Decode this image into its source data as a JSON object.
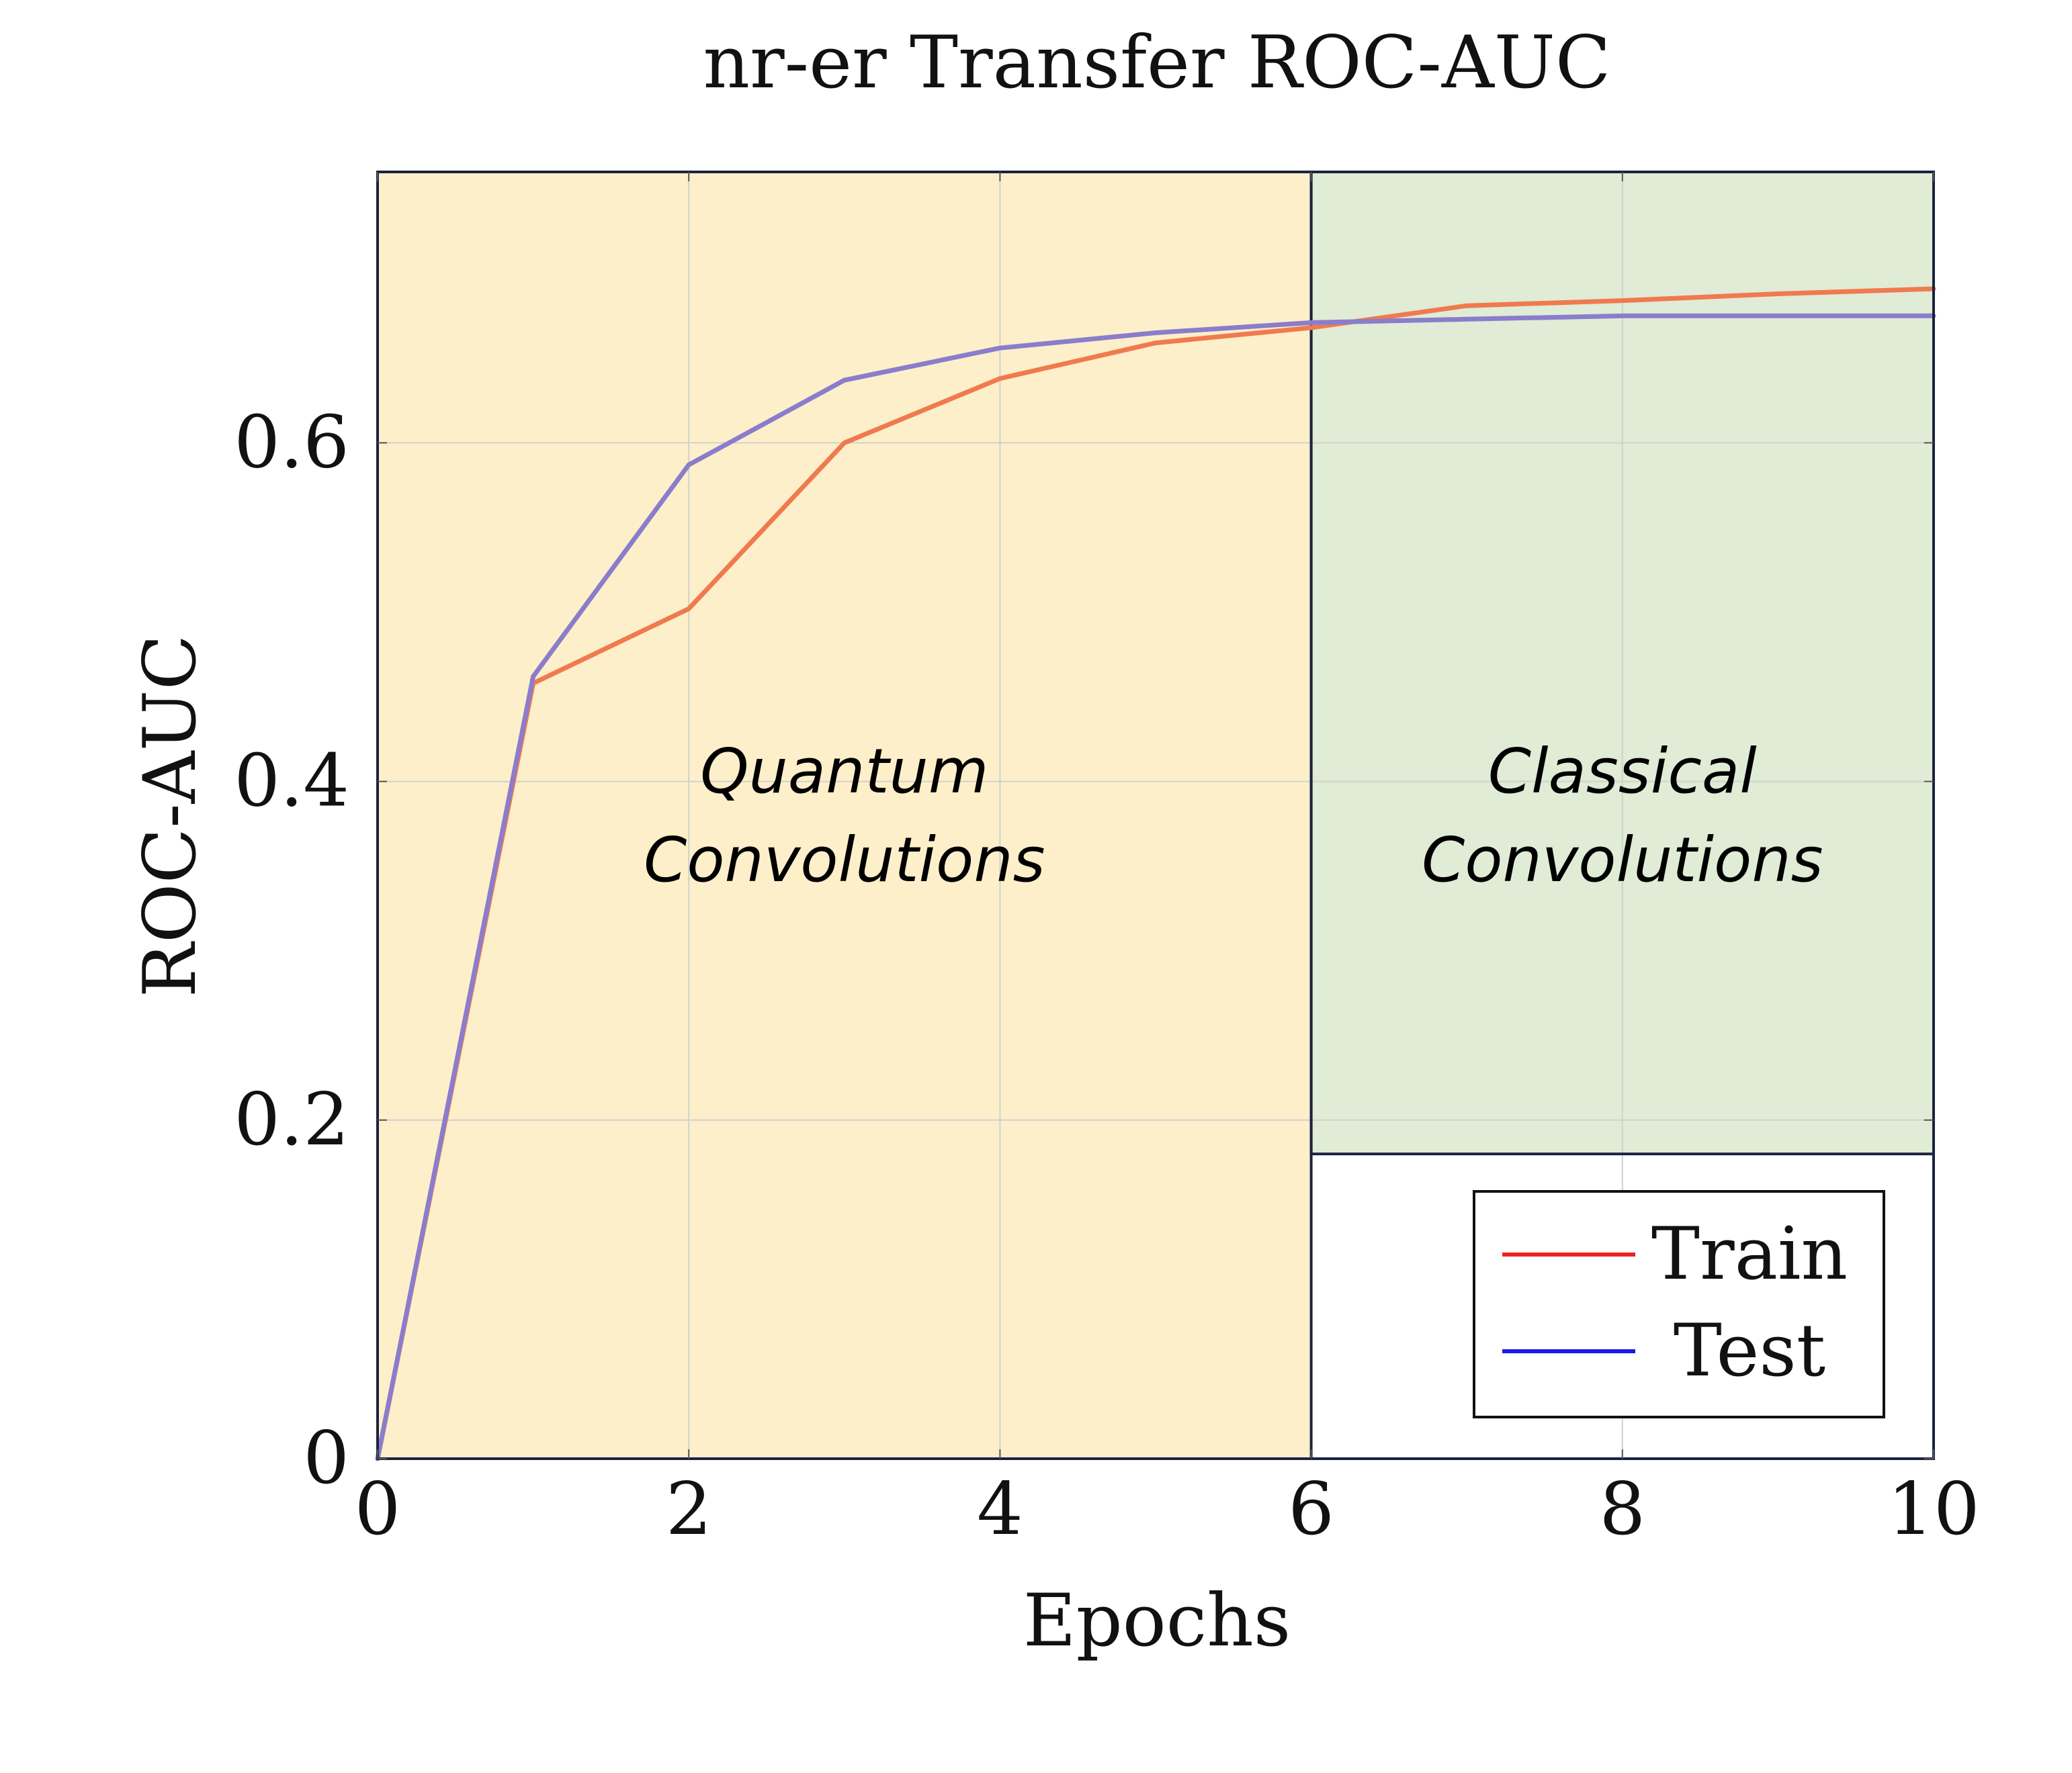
{
  "chart_data": {
    "type": "line",
    "title": "nr-er Transfer ROC-AUC",
    "xlabel": "Epochs",
    "ylabel": "ROC-AUC",
    "xlim": [
      0,
      10
    ],
    "ylim": [
      0,
      0.76
    ],
    "x_ticks": [
      0,
      2,
      4,
      6,
      8,
      10
    ],
    "x_tick_labels": [
      "0",
      "2",
      "4",
      "6",
      "8",
      "10"
    ],
    "y_ticks": [
      0,
      0.2,
      0.4,
      0.6
    ],
    "y_tick_labels": [
      "0",
      "0.2",
      "0.4",
      "0.6"
    ],
    "grid": true,
    "legend_position": "bottom-right",
    "x": [
      0,
      1,
      2,
      3,
      4,
      5,
      6,
      7,
      8,
      9,
      10
    ],
    "series": [
      {
        "name": "Train",
        "color": "#f07a4f",
        "legend_color": "#ee2222",
        "values": [
          0.0,
          0.458,
          0.502,
          0.6,
          0.638,
          0.659,
          0.668,
          0.681,
          0.684,
          0.688,
          0.691
        ]
      },
      {
        "name": "Test",
        "color": "#8a7dcc",
        "legend_color": "#1a1aee",
        "values": [
          0.0,
          0.462,
          0.587,
          0.637,
          0.656,
          0.665,
          0.671,
          0.673,
          0.675,
          0.675,
          0.675
        ]
      }
    ],
    "regions": [
      {
        "label_line1": "Quantum",
        "label_line2": "Convolutions",
        "x_start": 0,
        "x_end": 6,
        "y_start": 0,
        "y_end": 0.76,
        "color": "#fdefc9"
      },
      {
        "label_line1": "Classical",
        "label_line2": "Convolutions",
        "x_start": 6,
        "x_end": 10,
        "y_start": 0.18,
        "y_end": 0.76,
        "color": "#e0ecd5"
      }
    ]
  }
}
